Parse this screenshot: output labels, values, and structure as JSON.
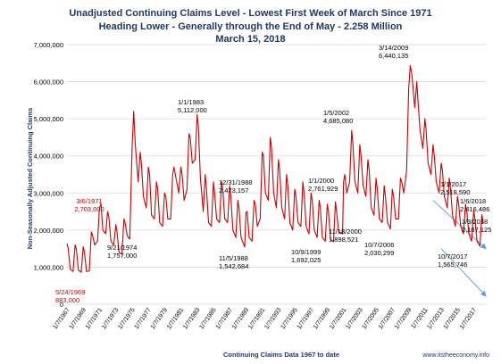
{
  "chart_data": {
    "type": "line",
    "title": "Unadjusted Continuing Claims Level - Lowest First Week of March Since 1971",
    "subtitle": "Heading Lower - Generally through the End of May - 2.258 Million",
    "date_line": "March 15, 2018",
    "ylabel": "Non-Seasonally Adjusted Continuing Claims",
    "xlabel": "Continuing Claims Data 1967 to date",
    "source": "www.itstheeconomy.info",
    "ylim": [
      0,
      7000000
    ],
    "y_ticks": [
      0,
      1000000,
      2000000,
      3000000,
      4000000,
      5000000,
      6000000,
      7000000
    ],
    "y_tick_labels": [
      "0",
      "1,000,000",
      "2,000,000",
      "3,000,000",
      "4,000,000",
      "5,000,000",
      "6,000,000",
      "7,000,000"
    ],
    "xlim": [
      1967.0,
      2018.6
    ],
    "x_tick_labels": [
      "1/7/1967",
      "1/7/1969",
      "1/7/1971",
      "1/7/1973",
      "1/7/1975",
      "1/7/1977",
      "1/7/1979",
      "1/7/1981",
      "1/7/1983",
      "1/7/1985",
      "1/7/1987",
      "1/7/1989",
      "1/7/1991",
      "1/7/1993",
      "1/7/1995",
      "1/7/1997",
      "1/7/1999",
      "1/7/2001",
      "1/7/2003",
      "1/7/2005",
      "1/7/2007",
      "1/7/2009",
      "1/7/2011",
      "1/7/2013",
      "1/7/2015",
      "1/7/2017"
    ],
    "line_color": "#cc0000",
    "series": [
      {
        "points": [
          [
            1967.0,
            1630000
          ],
          [
            1967.15,
            1500000
          ],
          [
            1967.4,
            950000
          ],
          [
            1967.75,
            880000
          ],
          [
            1968.0,
            1600000
          ],
          [
            1968.15,
            1480000
          ],
          [
            1968.4,
            920000
          ],
          [
            1968.75,
            860000
          ],
          [
            1969.0,
            1550000
          ],
          [
            1969.15,
            1400000
          ],
          [
            1969.4,
            883000
          ],
          [
            1969.75,
            900000
          ],
          [
            1970.0,
            1950000
          ],
          [
            1970.15,
            1850000
          ],
          [
            1970.4,
            1600000
          ],
          [
            1970.75,
            1700000
          ],
          [
            1971.0,
            2600000
          ],
          [
            1971.18,
            2703000
          ],
          [
            1971.4,
            2000000
          ],
          [
            1971.75,
            1900000
          ],
          [
            1972.0,
            2500000
          ],
          [
            1972.15,
            2350000
          ],
          [
            1972.4,
            1700000
          ],
          [
            1972.75,
            1600000
          ],
          [
            1973.0,
            2150000
          ],
          [
            1973.15,
            1950000
          ],
          [
            1973.4,
            1400000
          ],
          [
            1973.75,
            1350000
          ],
          [
            1974.0,
            2300000
          ],
          [
            1974.15,
            2200000
          ],
          [
            1974.4,
            1850000
          ],
          [
            1974.72,
            1757000
          ],
          [
            1975.0,
            4200000
          ],
          [
            1975.2,
            5200000
          ],
          [
            1975.4,
            4300000
          ],
          [
            1975.75,
            3300000
          ],
          [
            1976.0,
            4100000
          ],
          [
            1976.15,
            3800000
          ],
          [
            1976.4,
            2900000
          ],
          [
            1976.75,
            2600000
          ],
          [
            1977.0,
            3700000
          ],
          [
            1977.15,
            3500000
          ],
          [
            1977.4,
            2400000
          ],
          [
            1977.75,
            2300000
          ],
          [
            1978.0,
            3300000
          ],
          [
            1978.15,
            3100000
          ],
          [
            1978.4,
            2200000
          ],
          [
            1978.75,
            2100000
          ],
          [
            1979.0,
            3000000
          ],
          [
            1979.15,
            2900000
          ],
          [
            1979.4,
            2300000
          ],
          [
            1979.75,
            2300000
          ],
          [
            1980.0,
            3500000
          ],
          [
            1980.15,
            3700000
          ],
          [
            1980.4,
            3400000
          ],
          [
            1980.75,
            3000000
          ],
          [
            1981.0,
            3700000
          ],
          [
            1981.15,
            3500000
          ],
          [
            1981.4,
            2800000
          ],
          [
            1981.75,
            3100000
          ],
          [
            1982.0,
            4600000
          ],
          [
            1982.15,
            4500000
          ],
          [
            1982.4,
            3800000
          ],
          [
            1982.75,
            3900000
          ],
          [
            1983.0,
            5112000
          ],
          [
            1983.15,
            4800000
          ],
          [
            1983.4,
            3400000
          ],
          [
            1983.75,
            2500000
          ],
          [
            1984.0,
            3500000
          ],
          [
            1984.15,
            3100000
          ],
          [
            1984.4,
            2200000
          ],
          [
            1984.75,
            2100000
          ],
          [
            1985.0,
            3300000
          ],
          [
            1985.15,
            3000000
          ],
          [
            1985.4,
            2300000
          ],
          [
            1985.75,
            2200000
          ],
          [
            1986.0,
            3300000
          ],
          [
            1986.15,
            3100000
          ],
          [
            1986.4,
            2300000
          ],
          [
            1986.75,
            2200000
          ],
          [
            1987.0,
            3200000
          ],
          [
            1987.15,
            2900000
          ],
          [
            1987.4,
            2000000
          ],
          [
            1987.75,
            1800000
          ],
          [
            1988.0,
            2800000
          ],
          [
            1988.15,
            2600000
          ],
          [
            1988.4,
            1800000
          ],
          [
            1988.85,
            1542684
          ],
          [
            1989.0,
            2473157
          ],
          [
            1989.15,
            2500000
          ],
          [
            1989.4,
            1800000
          ],
          [
            1989.75,
            1700000
          ],
          [
            1990.0,
            2800000
          ],
          [
            1990.15,
            2700000
          ],
          [
            1990.4,
            2100000
          ],
          [
            1990.75,
            2300000
          ],
          [
            1991.0,
            4100000
          ],
          [
            1991.15,
            4000000
          ],
          [
            1991.4,
            3000000
          ],
          [
            1991.75,
            2800000
          ],
          [
            1992.0,
            4500000
          ],
          [
            1992.15,
            4200000
          ],
          [
            1992.4,
            3000000
          ],
          [
            1992.75,
            2600000
          ],
          [
            1993.0,
            3900000
          ],
          [
            1993.15,
            3600000
          ],
          [
            1993.4,
            2600000
          ],
          [
            1993.75,
            2300000
          ],
          [
            1994.0,
            3500000
          ],
          [
            1994.15,
            3200000
          ],
          [
            1994.4,
            2200000
          ],
          [
            1994.75,
            2000000
          ],
          [
            1995.0,
            3100000
          ],
          [
            1995.15,
            2900000
          ],
          [
            1995.4,
            2200000
          ],
          [
            1995.75,
            2100000
          ],
          [
            1996.0,
            3300000
          ],
          [
            1996.15,
            3000000
          ],
          [
            1996.4,
            2100000
          ],
          [
            1996.75,
            1900000
          ],
          [
            1997.0,
            3000000
          ],
          [
            1997.15,
            2800000
          ],
          [
            1997.4,
            2000000
          ],
          [
            1997.75,
            1800000
          ],
          [
            1998.0,
            2800000
          ],
          [
            1998.15,
            2600000
          ],
          [
            1998.4,
            1800000
          ],
          [
            1998.75,
            1700000
          ],
          [
            1999.0,
            2700000
          ],
          [
            1999.15,
            2500000
          ],
          [
            1999.4,
            1750000
          ],
          [
            1999.77,
            1692025
          ],
          [
            2000.0,
            2761929
          ],
          [
            2000.15,
            2500000
          ],
          [
            2000.4,
            1950000
          ],
          [
            2000.88,
            1898521
          ],
          [
            2001.0,
            3300000
          ],
          [
            2001.15,
            3500000
          ],
          [
            2001.4,
            3000000
          ],
          [
            2001.75,
            3300000
          ],
          [
            2002.0,
            4685080
          ],
          [
            2002.15,
            4300000
          ],
          [
            2002.4,
            3300000
          ],
          [
            2002.75,
            3000000
          ],
          [
            2003.0,
            4300000
          ],
          [
            2003.15,
            4000000
          ],
          [
            2003.4,
            3200000
          ],
          [
            2003.75,
            2900000
          ],
          [
            2004.0,
            3900000
          ],
          [
            2004.15,
            3600000
          ],
          [
            2004.4,
            2600000
          ],
          [
            2004.75,
            2400000
          ],
          [
            2005.0,
            3400000
          ],
          [
            2005.15,
            3100000
          ],
          [
            2005.4,
            2300000
          ],
          [
            2005.75,
            2200000
          ],
          [
            2006.0,
            3200000
          ],
          [
            2006.15,
            2900000
          ],
          [
            2006.4,
            2200000
          ],
          [
            2006.77,
            2030299
          ],
          [
            2007.0,
            3100000
          ],
          [
            2007.15,
            2900000
          ],
          [
            2007.4,
            2300000
          ],
          [
            2007.75,
            2300000
          ],
          [
            2008.0,
            3400000
          ],
          [
            2008.15,
            3300000
          ],
          [
            2008.4,
            3000000
          ],
          [
            2008.75,
            3600000
          ],
          [
            2009.0,
            5800000
          ],
          [
            2009.2,
            6440135
          ],
          [
            2009.4,
            6200000
          ],
          [
            2009.75,
            5300000
          ],
          [
            2010.0,
            6000000
          ],
          [
            2010.15,
            5500000
          ],
          [
            2010.4,
            4700000
          ],
          [
            2010.75,
            4200000
          ],
          [
            2011.0,
            5000000
          ],
          [
            2011.15,
            4700000
          ],
          [
            2011.4,
            3800000
          ],
          [
            2011.75,
            3500000
          ],
          [
            2012.0,
            4300000
          ],
          [
            2012.15,
            4000000
          ],
          [
            2012.4,
            3300000
          ],
          [
            2012.75,
            3000000
          ],
          [
            2013.0,
            3800000
          ],
          [
            2013.15,
            3600000
          ],
          [
            2013.4,
            2900000
          ],
          [
            2013.75,
            2600000
          ],
          [
            2014.0,
            3400000
          ],
          [
            2014.15,
            3100000
          ],
          [
            2014.4,
            2400000
          ],
          [
            2014.75,
            2100000
          ],
          [
            2015.0,
            2900000
          ],
          [
            2015.15,
            2700000
          ],
          [
            2015.4,
            2100000
          ],
          [
            2015.75,
            1900000
          ],
          [
            2016.0,
            2700000
          ],
          [
            2016.15,
            2500000
          ],
          [
            2016.4,
            1900000
          ],
          [
            2016.75,
            1700000
          ],
          [
            2017.0,
            2518590
          ],
          [
            2017.15,
            2300000
          ],
          [
            2017.4,
            1700000
          ],
          [
            2017.77,
            1565746
          ],
          [
            2018.0,
            2416486
          ],
          [
            2018.1,
            2300000
          ],
          [
            2018.17,
            2187125
          ]
        ]
      }
    ],
    "annotations": [
      {
        "date": "3/6/1971",
        "value": "2,703,000",
        "x": 1971.18,
        "y": 2703000,
        "color": "#c00000"
      },
      {
        "date": "5/24/1969",
        "value": "883,000",
        "x": 1969.4,
        "y": 883000,
        "color": "#c00000"
      },
      {
        "date": "9/21/1974",
        "value": "1,757,000",
        "x": 1974.72,
        "y": 1757000,
        "color": "#000000"
      },
      {
        "date": "1/1/1983",
        "value": "5,112,000",
        "x": 1983.0,
        "y": 5112000,
        "color": "#000000"
      },
      {
        "date": "12/31/1988",
        "value": "2,473,157",
        "x": 1989.0,
        "y": 2473157,
        "color": "#000000"
      },
      {
        "date": "11/5/1988",
        "value": "1,542,684",
        "x": 1988.85,
        "y": 1542684,
        "color": "#000000"
      },
      {
        "date": "10/9/1999",
        "value": "1,692,025",
        "x": 1999.77,
        "y": 1692025,
        "color": "#000000"
      },
      {
        "date": "1/1/2000",
        "value": "2,761,929",
        "x": 2000.0,
        "y": 2761929,
        "color": "#000000"
      },
      {
        "date": "1/5/2002",
        "value": "4,685,080",
        "x": 2002.0,
        "y": 4685080,
        "color": "#000000"
      },
      {
        "date": "11/18/2000",
        "value": "1,898,521",
        "x": 2000.88,
        "y": 1898521,
        "color": "#000000"
      },
      {
        "date": "10/7/2006",
        "value": "2,030,299",
        "x": 2006.77,
        "y": 2030299,
        "color": "#000000"
      },
      {
        "date": "3/14/2009",
        "value": "6,440,135",
        "x": 2009.2,
        "y": 6440135,
        "color": "#000000"
      },
      {
        "date": "1/1/2017",
        "value": "2,518,590",
        "x": 2017.0,
        "y": 2518590,
        "color": "#000000"
      },
      {
        "date": "1/6/2018",
        "value": "2,416,486",
        "x": 2018.0,
        "y": 2416486,
        "color": "#000000"
      },
      {
        "date": "3/3/2018",
        "value": "2,187,125",
        "x": 2018.17,
        "y": 2187125,
        "color": "#000000"
      },
      {
        "date": "10/7/2017",
        "value": "1,565,746",
        "x": 2017.77,
        "y": 1565746,
        "color": "#000000"
      }
    ],
    "trend_arrows": [
      {
        "from": [
          2012.0,
          2800000
        ],
        "to": [
          2018.5,
          1500000
        ]
      },
      {
        "from": [
          2013.0,
          1500000
        ],
        "to": [
          2018.5,
          220000
        ]
      }
    ],
    "trend_color": "#5b9bd5"
  }
}
